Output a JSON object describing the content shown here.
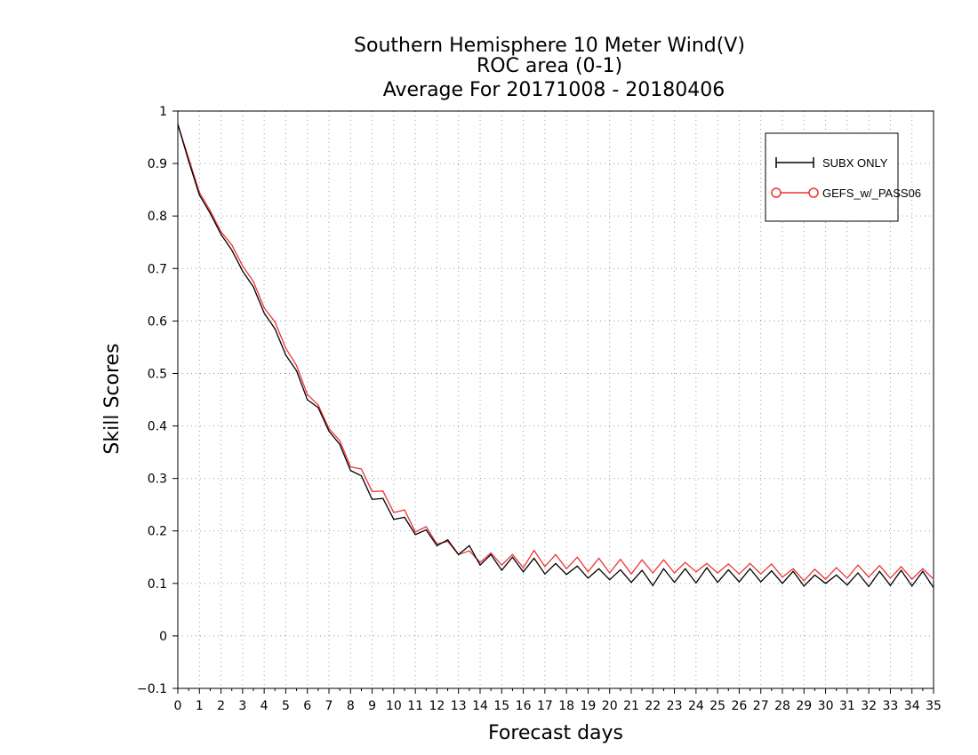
{
  "chart_data": {
    "type": "line",
    "title": [
      "Southern Hemisphere 10 Meter Wind(V)",
      "ROC area (0-1)",
      "Average For 20171008 - 20180406"
    ],
    "xlabel": "Forecast days",
    "ylabel": "Skill Scores",
    "xlim": [
      0,
      35
    ],
    "ylim": [
      -0.1,
      1
    ],
    "x_ticks": [
      0,
      1,
      2,
      3,
      4,
      5,
      6,
      7,
      8,
      9,
      10,
      11,
      12,
      13,
      14,
      15,
      16,
      17,
      18,
      19,
      20,
      21,
      22,
      23,
      24,
      25,
      26,
      27,
      28,
      29,
      30,
      31,
      32,
      33,
      34,
      35
    ],
    "y_ticks": [
      -0.1,
      0,
      0.1,
      0.2,
      0.3,
      0.4,
      0.5,
      0.6,
      0.7,
      0.8,
      0.9,
      1
    ],
    "y_tick_labels": [
      "−0.1",
      "0",
      "0.1",
      "0.2",
      "0.3",
      "0.4",
      "0.5",
      "0.6",
      "0.7",
      "0.8",
      "0.9",
      "1"
    ],
    "grid": true,
    "legend_position": "top-right",
    "x_step": 0.5,
    "series": [
      {
        "name": "SUBX ONLY",
        "color": "#000000",
        "marker": "plus",
        "values": [
          0.975,
          0.905,
          0.84,
          0.805,
          0.765,
          0.735,
          0.695,
          0.665,
          0.615,
          0.585,
          0.535,
          0.505,
          0.45,
          0.435,
          0.39,
          0.365,
          0.315,
          0.305,
          0.26,
          0.262,
          0.222,
          0.226,
          0.193,
          0.202,
          0.172,
          0.183,
          0.155,
          0.172,
          0.135,
          0.155,
          0.125,
          0.15,
          0.122,
          0.148,
          0.118,
          0.138,
          0.117,
          0.133,
          0.11,
          0.128,
          0.107,
          0.126,
          0.102,
          0.125,
          0.096,
          0.128,
          0.102,
          0.128,
          0.101,
          0.13,
          0.102,
          0.126,
          0.103,
          0.128,
          0.103,
          0.124,
          0.1,
          0.123,
          0.095,
          0.116,
          0.1,
          0.116,
          0.097,
          0.12,
          0.094,
          0.123,
          0.096,
          0.125,
          0.095,
          0.123,
          0.092
        ]
      },
      {
        "name": "GEFS_w/_PASS06",
        "color": "#ee3333",
        "marker": "circle",
        "values": [
          0.975,
          0.91,
          0.845,
          0.81,
          0.77,
          0.745,
          0.705,
          0.675,
          0.625,
          0.598,
          0.548,
          0.515,
          0.46,
          0.44,
          0.395,
          0.372,
          0.322,
          0.318,
          0.275,
          0.276,
          0.235,
          0.24,
          0.198,
          0.208,
          0.175,
          0.18,
          0.155,
          0.162,
          0.14,
          0.158,
          0.135,
          0.155,
          0.13,
          0.163,
          0.132,
          0.155,
          0.128,
          0.15,
          0.122,
          0.148,
          0.12,
          0.146,
          0.118,
          0.145,
          0.12,
          0.145,
          0.12,
          0.14,
          0.122,
          0.138,
          0.12,
          0.137,
          0.118,
          0.138,
          0.118,
          0.137,
          0.112,
          0.128,
          0.105,
          0.127,
          0.108,
          0.13,
          0.11,
          0.135,
          0.112,
          0.134,
          0.11,
          0.132,
          0.108,
          0.128,
          0.108
        ]
      }
    ]
  }
}
